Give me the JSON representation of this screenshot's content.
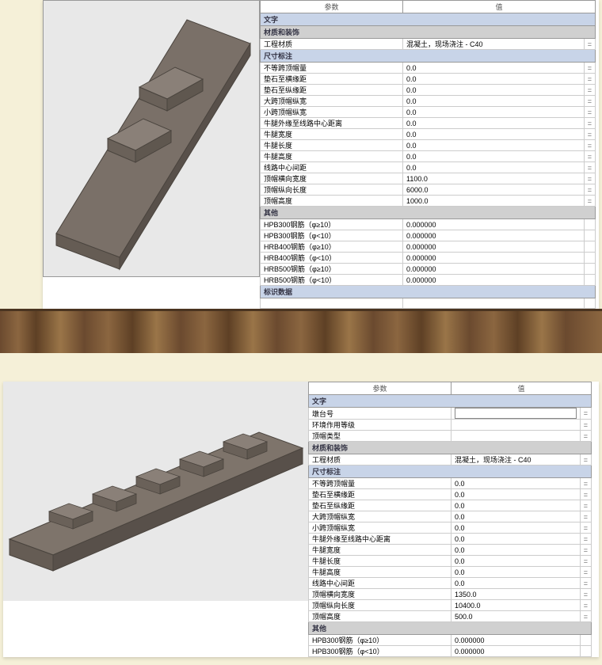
{
  "table1": {
    "header_param": "参数",
    "header_value": "值",
    "sections": [
      {
        "label": "文字",
        "kind": "blue",
        "rows": []
      },
      {
        "label": "材质和装饰",
        "kind": "gray",
        "rows": [
          {
            "p": "工程材质",
            "v": "混凝土，现场浇注 - C40",
            "eq": "="
          }
        ]
      },
      {
        "label": "尺寸标注",
        "kind": "blue",
        "rows": [
          {
            "p": "不等跨顶帽量",
            "v": "0.0",
            "eq": "="
          },
          {
            "p": "垫石至横缘距",
            "v": "0.0",
            "eq": "="
          },
          {
            "p": "垫石至纵缘距",
            "v": "0.0",
            "eq": "="
          },
          {
            "p": "大跨顶帽纵宽",
            "v": "0.0",
            "eq": "="
          },
          {
            "p": "小跨顶帽纵宽",
            "v": "0.0",
            "eq": "="
          },
          {
            "p": "牛腿外缘至线路中心距离",
            "v": "0.0",
            "eq": "="
          },
          {
            "p": "牛腿宽度",
            "v": "0.0",
            "eq": "="
          },
          {
            "p": "牛腿长度",
            "v": "0.0",
            "eq": "="
          },
          {
            "p": "牛腿高度",
            "v": "0.0",
            "eq": "="
          },
          {
            "p": "线路中心间距",
            "v": "0.0",
            "eq": "="
          },
          {
            "p": "顶帽横向宽度",
            "v": "1100.0",
            "eq": "="
          },
          {
            "p": "顶帽纵向长度",
            "v": "6000.0",
            "eq": "="
          },
          {
            "p": "顶帽高度",
            "v": "1000.0",
            "eq": "="
          }
        ]
      },
      {
        "label": "其他",
        "kind": "gray",
        "rows": [
          {
            "p": "HPB300钢筋（φ≥10）",
            "v": "0.000000",
            "eq": ""
          },
          {
            "p": "HPB300钢筋（φ<10）",
            "v": "0.000000",
            "eq": ""
          },
          {
            "p": "HRB400钢筋（φ≥10）",
            "v": "0.000000",
            "eq": ""
          },
          {
            "p": "HRB400钢筋（φ<10）",
            "v": "0.000000",
            "eq": ""
          },
          {
            "p": "HRB500钢筋（φ≥10）",
            "v": "0.000000",
            "eq": ""
          },
          {
            "p": "HRB500钢筋（φ<10）",
            "v": "0.000000",
            "eq": ""
          }
        ]
      },
      {
        "label": "标识数据",
        "kind": "blue",
        "rows": [
          {
            "p": "",
            "v": "",
            "eq": "",
            "blank": true
          }
        ]
      }
    ]
  },
  "table2": {
    "header_param": "参数",
    "header_value": "值",
    "sections": [
      {
        "label": "文字",
        "kind": "blue",
        "rows": [
          {
            "p": "墩台号",
            "v": "",
            "eq": "=",
            "input": true
          },
          {
            "p": "环境作用等级",
            "v": "",
            "eq": "="
          },
          {
            "p": "顶帽类型",
            "v": "",
            "eq": "="
          }
        ]
      },
      {
        "label": "材质和装饰",
        "kind": "gray",
        "rows": [
          {
            "p": "工程材质",
            "v": "混凝土，现场浇注 - C40",
            "eq": "="
          }
        ]
      },
      {
        "label": "尺寸标注",
        "kind": "blue",
        "rows": [
          {
            "p": "不等跨顶帽量",
            "v": "0.0",
            "eq": "="
          },
          {
            "p": "垫石至横缘距",
            "v": "0.0",
            "eq": "="
          },
          {
            "p": "垫石至纵缘距",
            "v": "0.0",
            "eq": "="
          },
          {
            "p": "大跨顶帽纵宽",
            "v": "0.0",
            "eq": "="
          },
          {
            "p": "小跨顶帽纵宽",
            "v": "0.0",
            "eq": "="
          },
          {
            "p": "牛腿外缘至线路中心距离",
            "v": "0.0",
            "eq": "="
          },
          {
            "p": "牛腿宽度",
            "v": "0.0",
            "eq": "="
          },
          {
            "p": "牛腿长度",
            "v": "0.0",
            "eq": "="
          },
          {
            "p": "牛腿高度",
            "v": "0.0",
            "eq": "="
          },
          {
            "p": "线路中心间距",
            "v": "0.0",
            "eq": "="
          },
          {
            "p": "顶帽横向宽度",
            "v": "1350.0",
            "eq": "="
          },
          {
            "p": "顶帽纵向长度",
            "v": "10400.0",
            "eq": "="
          },
          {
            "p": "顶帽高度",
            "v": "500.0",
            "eq": "="
          }
        ]
      },
      {
        "label": "其他",
        "kind": "gray",
        "rows": [
          {
            "p": "HPB300钢筋（φ≥10）",
            "v": "0.000000",
            "eq": ""
          },
          {
            "p": "HPB300钢筋（φ<10）",
            "v": "0.000000",
            "eq": ""
          }
        ]
      }
    ]
  },
  "colors": {
    "section_blue": "#c8d4e8",
    "section_gray": "#d0d0d0",
    "viewport_bg": "#e8e8e8",
    "page_bg": "#f5f0d8"
  }
}
